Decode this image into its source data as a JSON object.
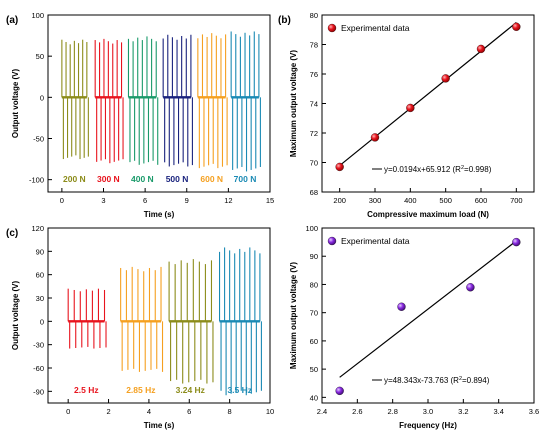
{
  "panels": [
    {
      "id": "a",
      "panel_label": "(a)",
      "chart_data": {
        "type": "line",
        "xlabel": "Time (s)",
        "ylabel": "Output voltage (V)",
        "xlim": [
          -1,
          15
        ],
        "ylim": [
          -115,
          100
        ],
        "xticks": [
          0,
          3,
          6,
          9,
          12,
          15
        ],
        "yticks": [
          -100,
          -50,
          0,
          50,
          100
        ],
        "bursts": [
          {
            "label": "200 N",
            "color": "#8c8c1a",
            "t_start": 0.0,
            "t_end": 1.8,
            "pulses": 7,
            "peak_pos": 70,
            "peak_neg": -75
          },
          {
            "label": "300 N",
            "color": "#e8141e",
            "t_start": 2.4,
            "t_end": 4.3,
            "pulses": 7,
            "peak_pos": 71,
            "peak_neg": -80
          },
          {
            "label": "400 N",
            "color": "#1a9a6a",
            "t_start": 4.8,
            "t_end": 6.8,
            "pulses": 7,
            "peak_pos": 74,
            "peak_neg": -82
          },
          {
            "label": "500 N",
            "color": "#1a237e",
            "t_start": 7.3,
            "t_end": 9.3,
            "pulses": 7,
            "peak_pos": 76,
            "peak_neg": -84
          },
          {
            "label": "600 N",
            "color": "#f5a020",
            "t_start": 9.8,
            "t_end": 11.8,
            "pulses": 7,
            "peak_pos": 78,
            "peak_neg": -86
          },
          {
            "label": "700 N",
            "color": "#1a8ab4",
            "t_start": 12.2,
            "t_end": 14.2,
            "pulses": 7,
            "peak_pos": 80,
            "peak_neg": -90
          }
        ]
      }
    },
    {
      "id": "b",
      "panel_label": "(b)",
      "chart_data": {
        "type": "scatter",
        "xlabel": "Compressive maximum load (N)",
        "ylabel": "Maximum output voltage (V)",
        "xlim": [
          150,
          750
        ],
        "ylim": [
          68,
          80
        ],
        "xticks": [
          200,
          300,
          400,
          500,
          600,
          700
        ],
        "yticks": [
          68,
          70,
          72,
          74,
          76,
          78,
          80
        ],
        "points_x": [
          200,
          300,
          400,
          500,
          600,
          700
        ],
        "points_y": [
          69.7,
          71.7,
          73.7,
          75.7,
          77.7,
          79.2
        ],
        "point_color": "#e8141e",
        "fit": {
          "slope": 0.0194,
          "intercept": 65.912,
          "x_range": [
            200,
            700
          ],
          "label": "y=0.0194x+65.912 (R",
          "label_sup": "2",
          "label_tail": "=0.998)"
        },
        "legend": "Experimental data"
      }
    },
    {
      "id": "c",
      "panel_label": "(c)",
      "chart_data": {
        "type": "line",
        "xlabel": "Time (s)",
        "ylabel": "Output voltage (V)",
        "xlim": [
          -1,
          10
        ],
        "ylim": [
          -105,
          120
        ],
        "xticks": [
          0,
          2,
          4,
          6,
          8,
          10
        ],
        "yticks": [
          -90,
          -60,
          -30,
          0,
          30,
          60,
          90,
          120
        ],
        "bursts": [
          {
            "label": "2.5 Hz",
            "color": "#e8141e",
            "t_start": 0.0,
            "t_end": 1.8,
            "pulses": 7,
            "peak_pos": 42,
            "peak_neg": -35
          },
          {
            "label": "2.85 Hz",
            "color": "#f5a020",
            "t_start": 2.6,
            "t_end": 4.6,
            "pulses": 8,
            "peak_pos": 70,
            "peak_neg": -65
          },
          {
            "label": "3.24 Hz",
            "color": "#8c8c1a",
            "t_start": 5.0,
            "t_end": 7.1,
            "pulses": 8,
            "peak_pos": 80,
            "peak_neg": -80
          },
          {
            "label": "3.5 Hz",
            "color": "#1a8ab4",
            "t_start": 7.5,
            "t_end": 9.5,
            "pulses": 9,
            "peak_pos": 95,
            "peak_neg": -95
          }
        ]
      }
    },
    {
      "id": "d",
      "panel_label": "",
      "chart_data": {
        "type": "scatter",
        "xlabel": "Frequency (Hz)",
        "ylabel": "Maximum output voltage (V)",
        "xlim": [
          2.4,
          3.6
        ],
        "ylim": [
          38,
          100
        ],
        "xticks": [
          2.4,
          2.6,
          2.8,
          3.0,
          3.2,
          3.4,
          3.6
        ],
        "xtick_labels": [
          "2.4",
          "2.6",
          "2.8",
          "3.0",
          "3.2",
          "3.4",
          "3.6"
        ],
        "yticks": [
          40,
          50,
          60,
          70,
          80,
          90,
          100
        ],
        "points_x": [
          2.5,
          2.85,
          3.24,
          3.5
        ],
        "points_y": [
          42.3,
          72.1,
          79.0,
          95.0
        ],
        "point_color": "#8a2be2",
        "fit": {
          "slope": 48.343,
          "intercept": -73.763,
          "x_range": [
            2.5,
            3.5
          ],
          "label": "y=48.343x-73.763 (R",
          "label_sup": "2",
          "label_tail": "=0.894)"
        },
        "legend": "Experimental data"
      }
    }
  ]
}
